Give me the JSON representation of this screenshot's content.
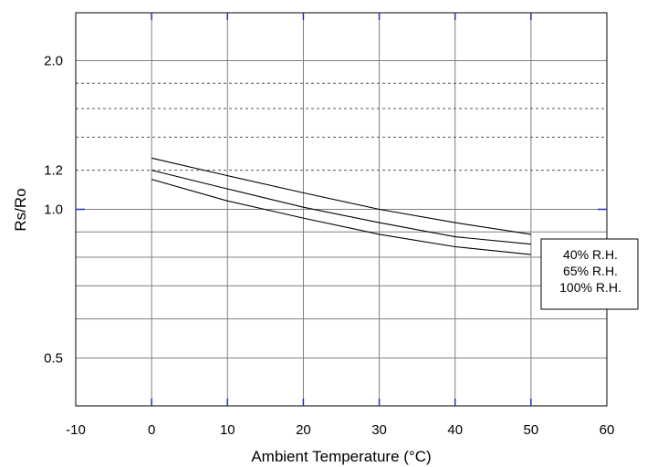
{
  "chart_data": {
    "type": "line",
    "title": "",
    "xlabel": "Ambient Temperature (°C)",
    "ylabel": "Rs/Ro",
    "xlim": [
      -10,
      60
    ],
    "ylim": [
      0.4,
      2.5
    ],
    "y_scale": "log",
    "grid": true,
    "x_ticks": [
      "-10",
      "0",
      "10",
      "20",
      "30",
      "40",
      "50",
      "60"
    ],
    "y_tick_labels": [
      {
        "value": 0.5,
        "label": "0.5"
      },
      {
        "value": 1.0,
        "label": "1.0"
      },
      {
        "value": 1.2,
        "label": "1.2"
      },
      {
        "value": 2.0,
        "label": "2.0"
      }
    ],
    "legend_position": "right",
    "series": [
      {
        "name": "40% R.H.",
        "x": [
          0,
          10,
          20,
          30,
          40,
          50
        ],
        "y": [
          1.27,
          1.17,
          1.08,
          1.0,
          0.94,
          0.89
        ]
      },
      {
        "name": "65% R.H.",
        "x": [
          0,
          10,
          20,
          30,
          40,
          50
        ],
        "y": [
          1.2,
          1.1,
          1.01,
          0.94,
          0.88,
          0.85
        ]
      },
      {
        "name": "100% R.H.",
        "x": [
          0,
          10,
          20,
          30,
          40,
          50
        ],
        "y": [
          1.15,
          1.04,
          0.96,
          0.89,
          0.84,
          0.81
        ]
      }
    ]
  }
}
